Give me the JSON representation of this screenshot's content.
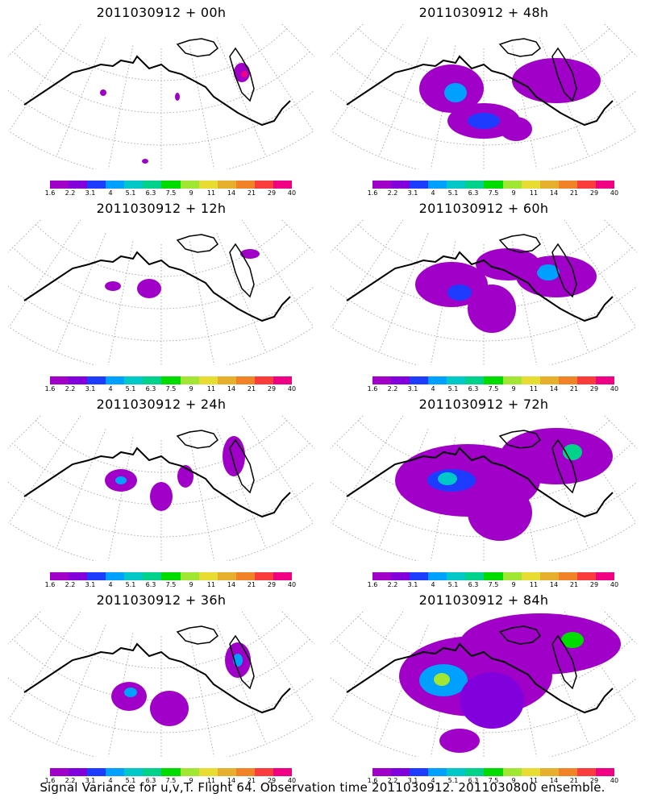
{
  "panels": [
    {
      "title": "2011030912 + 00h"
    },
    {
      "title": "2011030912 + 48h"
    },
    {
      "title": "2011030912 + 12h"
    },
    {
      "title": "2011030912 + 60h"
    },
    {
      "title": "2011030912 + 24h"
    },
    {
      "title": "2011030912 + 72h"
    },
    {
      "title": "2011030912 + 36h"
    },
    {
      "title": "2011030912 + 84h"
    }
  ],
  "colorbar": {
    "labels": [
      "1.6",
      "2.2",
      "3.1",
      "4",
      "5.1",
      "6.3",
      "7.5",
      "9",
      "11",
      "14",
      "21",
      "29",
      "40"
    ],
    "colors": [
      "#a000c8",
      "#8200dc",
      "#1e3cff",
      "#00a0ff",
      "#00c8c8",
      "#00d28c",
      "#00dc00",
      "#a0e632",
      "#e6dc32",
      "#e6af2d",
      "#f08228",
      "#fa3c3c",
      "#f00082"
    ]
  },
  "caption": "Signal Variance for u,v,T. Flight 64. Observation time 2011030912. 2011030800 ensemble."
}
